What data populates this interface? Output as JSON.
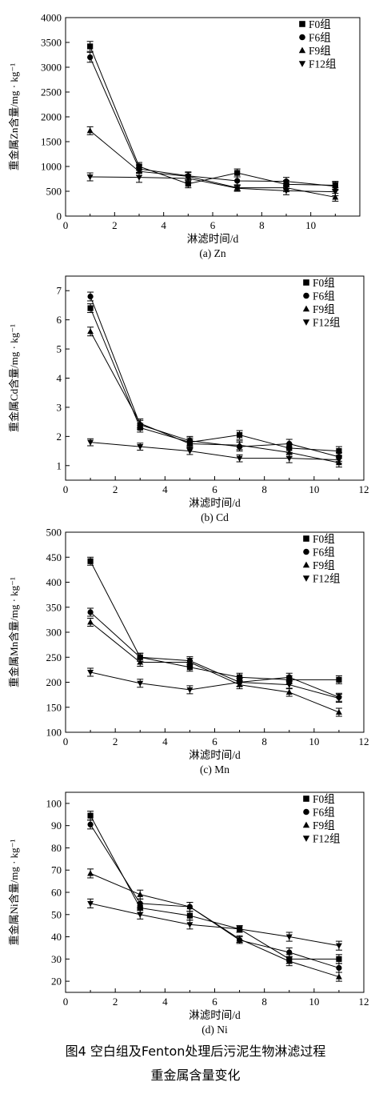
{
  "figure": {
    "caption_line1": "图4  空白组及Fenton处理后污泥生物淋滤过程",
    "caption_line2": "重金属含量变化"
  },
  "chart_data": [
    {
      "type": "line",
      "title": "",
      "subtitle": "(a) Zn",
      "xlabel": "淋滤时间/d",
      "ylabel": "重金属Zn含量/mg · kg⁻¹",
      "xlim": [
        0,
        12
      ],
      "ylim": [
        0,
        4000
      ],
      "xticks": [
        0,
        2,
        4,
        6,
        8,
        10
      ],
      "yticks": [
        0,
        500,
        1000,
        1500,
        2000,
        2500,
        3000,
        3500,
        4000
      ],
      "grid": false,
      "legend": "top-right",
      "x": [
        1,
        3,
        5,
        7,
        9,
        11
      ],
      "series": [
        {
          "name": "F0组",
          "marker": "square",
          "values": [
            3420,
            1000,
            650,
            870,
            640,
            620
          ],
          "errors": [
            100,
            80,
            80,
            80,
            80,
            80
          ]
        },
        {
          "name": "F6组",
          "marker": "circle",
          "values": [
            3200,
            950,
            810,
            710,
            700,
            600
          ],
          "errors": [
            100,
            80,
            80,
            80,
            80,
            80
          ]
        },
        {
          "name": "F9组",
          "marker": "triangle-up",
          "values": [
            1720,
            900,
            800,
            570,
            570,
            380
          ],
          "errors": [
            80,
            80,
            80,
            60,
            80,
            80
          ]
        },
        {
          "name": "F12组",
          "marker": "triangle-down",
          "values": [
            790,
            780,
            760,
            560,
            510,
            490
          ],
          "errors": [
            80,
            100,
            80,
            60,
            80,
            80
          ]
        }
      ]
    },
    {
      "type": "line",
      "title": "",
      "subtitle": "(b) Cd",
      "xlabel": "淋滤时间/d",
      "ylabel": "重金属Cd含量/mg · kg⁻¹",
      "xlim": [
        0,
        12
      ],
      "ylim": [
        0.5,
        7.5
      ],
      "xticks": [
        0,
        2,
        4,
        6,
        8,
        10,
        12
      ],
      "yticks": [
        1,
        2,
        3,
        4,
        5,
        6,
        7
      ],
      "grid": false,
      "legend": "top-right",
      "x": [
        1,
        3,
        5,
        7,
        9,
        11
      ],
      "series": [
        {
          "name": "F0组",
          "marker": "square",
          "values": [
            6.4,
            2.3,
            1.8,
            2.05,
            1.6,
            1.5
          ],
          "errors": [
            0.15,
            0.15,
            0.15,
            0.15,
            0.15,
            0.15
          ]
        },
        {
          "name": "F6组",
          "marker": "circle",
          "values": [
            6.8,
            2.4,
            1.85,
            1.65,
            1.75,
            1.3
          ],
          "errors": [
            0.15,
            0.15,
            0.15,
            0.15,
            0.15,
            0.15
          ]
        },
        {
          "name": "F9组",
          "marker": "triangle-up",
          "values": [
            5.6,
            2.45,
            1.75,
            1.7,
            1.45,
            1.1
          ],
          "errors": [
            0.15,
            0.15,
            0.15,
            0.15,
            0.15,
            0.15
          ]
        },
        {
          "name": "F12组",
          "marker": "triangle-down",
          "values": [
            1.8,
            1.65,
            1.5,
            1.25,
            1.25,
            1.2
          ],
          "errors": [
            0.12,
            0.12,
            0.12,
            0.12,
            0.15,
            0.12
          ]
        }
      ]
    },
    {
      "type": "line",
      "title": "",
      "subtitle": "(c) Mn",
      "xlabel": "淋滤时间/d",
      "ylabel": "重金属Mn含量/mg · kg⁻¹",
      "xlim": [
        0,
        12
      ],
      "ylim": [
        100,
        500
      ],
      "xticks": [
        0,
        2,
        4,
        6,
        8,
        10,
        12
      ],
      "yticks": [
        100,
        150,
        200,
        250,
        300,
        350,
        400,
        450,
        500
      ],
      "grid": false,
      "legend": "top-right",
      "x": [
        1,
        3,
        5,
        7,
        9,
        11
      ],
      "series": [
        {
          "name": "F0组",
          "marker": "square",
          "values": [
            442,
            250,
            230,
            210,
            205,
            205
          ],
          "errors": [
            8,
            8,
            8,
            8,
            8,
            8
          ]
        },
        {
          "name": "F6组",
          "marker": "circle",
          "values": [
            340,
            250,
            243,
            200,
            210,
            170
          ],
          "errors": [
            8,
            8,
            8,
            8,
            8,
            8
          ]
        },
        {
          "name": "F9组",
          "marker": "triangle-up",
          "values": [
            320,
            240,
            240,
            195,
            180,
            140
          ],
          "errors": [
            8,
            8,
            8,
            8,
            8,
            8
          ]
        },
        {
          "name": "F12组",
          "marker": "triangle-down",
          "values": [
            220,
            198,
            185,
            200,
            195,
            168
          ],
          "errors": [
            8,
            8,
            8,
            8,
            8,
            8
          ]
        }
      ]
    },
    {
      "type": "line",
      "title": "",
      "subtitle": "(d) Ni",
      "xlabel": "淋滤时间/d",
      "ylabel": "重金属Ni含量/mg · kg⁻¹",
      "xlim": [
        0,
        12
      ],
      "ylim": [
        15,
        105
      ],
      "xticks": [
        0,
        2,
        4,
        6,
        8,
        10,
        12
      ],
      "yticks": [
        20,
        30,
        40,
        50,
        60,
        70,
        80,
        90,
        100
      ],
      "grid": false,
      "legend": "top-right",
      "x": [
        1,
        3,
        5,
        7,
        9,
        11
      ],
      "series": [
        {
          "name": "F0组",
          "marker": "square",
          "values": [
            94.5,
            53,
            49.5,
            43.5,
            30,
            30
          ],
          "errors": [
            2,
            2,
            2,
            1.5,
            2,
            2
          ]
        },
        {
          "name": "F6组",
          "marker": "circle",
          "values": [
            90.5,
            55,
            53.5,
            38.5,
            33,
            26
          ],
          "errors": [
            2,
            2,
            2,
            1.5,
            2,
            2
          ]
        },
        {
          "name": "F9组",
          "marker": "triangle-up",
          "values": [
            68.5,
            59,
            53.5,
            39,
            29,
            22
          ],
          "errors": [
            2,
            2,
            2,
            1.5,
            2,
            2
          ]
        },
        {
          "name": "F12组",
          "marker": "triangle-down",
          "values": [
            55,
            50,
            45.5,
            43.5,
            40,
            36
          ],
          "errors": [
            2,
            2,
            2,
            1.5,
            2,
            2
          ]
        }
      ]
    }
  ]
}
